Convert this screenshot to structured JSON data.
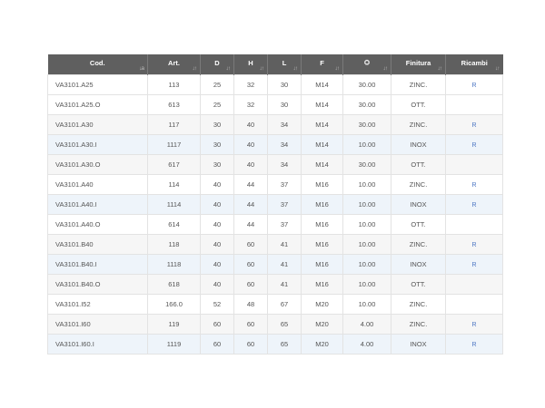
{
  "colors": {
    "header_bg": "#5f5f5f",
    "row_alt": "#f6f6f6",
    "row_highlight": "#eef4fa",
    "link": "#4f78c4"
  },
  "table": {
    "columns": [
      {
        "key": "code",
        "label": "Cod.",
        "sort_icon": "sort-alpha-icon",
        "sort_glyph": "↓a"
      },
      {
        "key": "art",
        "label": "Art.",
        "sort_icon": "sort-icon",
        "sort_glyph": "↓↑"
      },
      {
        "key": "d",
        "label": "D",
        "sort_icon": "sort-icon",
        "sort_glyph": "↓↑"
      },
      {
        "key": "h",
        "label": "H",
        "sort_icon": "sort-icon",
        "sort_glyph": "↓↑"
      },
      {
        "key": "l",
        "label": "L",
        "sort_icon": "sort-icon",
        "sort_glyph": "↓↑"
      },
      {
        "key": "f",
        "label": "F",
        "sort_icon": "sort-icon",
        "sort_glyph": "↓↑"
      },
      {
        "key": "load",
        "label": "⛭",
        "label_icon": "weight-icon",
        "sort_icon": "sort-icon",
        "sort_glyph": "↓↑"
      },
      {
        "key": "finish",
        "label": "Finitura",
        "sort_icon": "sort-icon",
        "sort_glyph": "↓↑"
      },
      {
        "key": "spares",
        "label": "Ricambi",
        "sort_icon": "sort-icon",
        "sort_glyph": "↓↑"
      }
    ],
    "rows": [
      {
        "code": "VA3101.A25",
        "art": "113",
        "d": "25",
        "h": "32",
        "l": "30",
        "f": "M14",
        "load": "30.00",
        "finish": "ZINC.",
        "spares": "R",
        "style": "white"
      },
      {
        "code": "VA3101.A25.O",
        "art": "613",
        "d": "25",
        "h": "32",
        "l": "30",
        "f": "M14",
        "load": "30.00",
        "finish": "OTT.",
        "spares": "",
        "style": "white"
      },
      {
        "code": "VA3101.A30",
        "art": "117",
        "d": "30",
        "h": "40",
        "l": "34",
        "f": "M14",
        "load": "30.00",
        "finish": "ZINC.",
        "spares": "R",
        "style": "grey"
      },
      {
        "code": "VA3101.A30.I",
        "art": "1117",
        "d": "30",
        "h": "40",
        "l": "34",
        "f": "M14",
        "load": "10.00",
        "finish": "INOX",
        "spares": "R",
        "style": "blue"
      },
      {
        "code": "VA3101.A30.O",
        "art": "617",
        "d": "30",
        "h": "40",
        "l": "34",
        "f": "M14",
        "load": "30.00",
        "finish": "OTT.",
        "spares": "",
        "style": "grey"
      },
      {
        "code": "VA3101.A40",
        "art": "114",
        "d": "40",
        "h": "44",
        "l": "37",
        "f": "M16",
        "load": "10.00",
        "finish": "ZINC.",
        "spares": "R",
        "style": "white"
      },
      {
        "code": "VA3101.A40.I",
        "art": "1114",
        "d": "40",
        "h": "44",
        "l": "37",
        "f": "M16",
        "load": "10.00",
        "finish": "INOX",
        "spares": "R",
        "style": "blue"
      },
      {
        "code": "VA3101.A40.O",
        "art": "614",
        "d": "40",
        "h": "44",
        "l": "37",
        "f": "M16",
        "load": "10.00",
        "finish": "OTT.",
        "spares": "",
        "style": "white"
      },
      {
        "code": "VA3101.B40",
        "art": "118",
        "d": "40",
        "h": "60",
        "l": "41",
        "f": "M16",
        "load": "10.00",
        "finish": "ZINC.",
        "spares": "R",
        "style": "grey"
      },
      {
        "code": "VA3101.B40.I",
        "art": "1118",
        "d": "40",
        "h": "60",
        "l": "41",
        "f": "M16",
        "load": "10.00",
        "finish": "INOX",
        "spares": "R",
        "style": "blue"
      },
      {
        "code": "VA3101.B40.O",
        "art": "618",
        "d": "40",
        "h": "60",
        "l": "41",
        "f": "M16",
        "load": "10.00",
        "finish": "OTT.",
        "spares": "",
        "style": "grey"
      },
      {
        "code": "VA3101.I52",
        "art": "166.0",
        "d": "52",
        "h": "48",
        "l": "67",
        "f": "M20",
        "load": "10.00",
        "finish": "ZINC.",
        "spares": "",
        "style": "white"
      },
      {
        "code": "VA3101.I60",
        "art": "119",
        "d": "60",
        "h": "60",
        "l": "65",
        "f": "M20",
        "load": "4.00",
        "finish": "ZINC.",
        "spares": "R",
        "style": "grey"
      },
      {
        "code": "VA3101.I60.I",
        "art": "1119",
        "d": "60",
        "h": "60",
        "l": "65",
        "f": "M20",
        "load": "4.00",
        "finish": "INOX",
        "spares": "R",
        "style": "blue"
      }
    ]
  }
}
